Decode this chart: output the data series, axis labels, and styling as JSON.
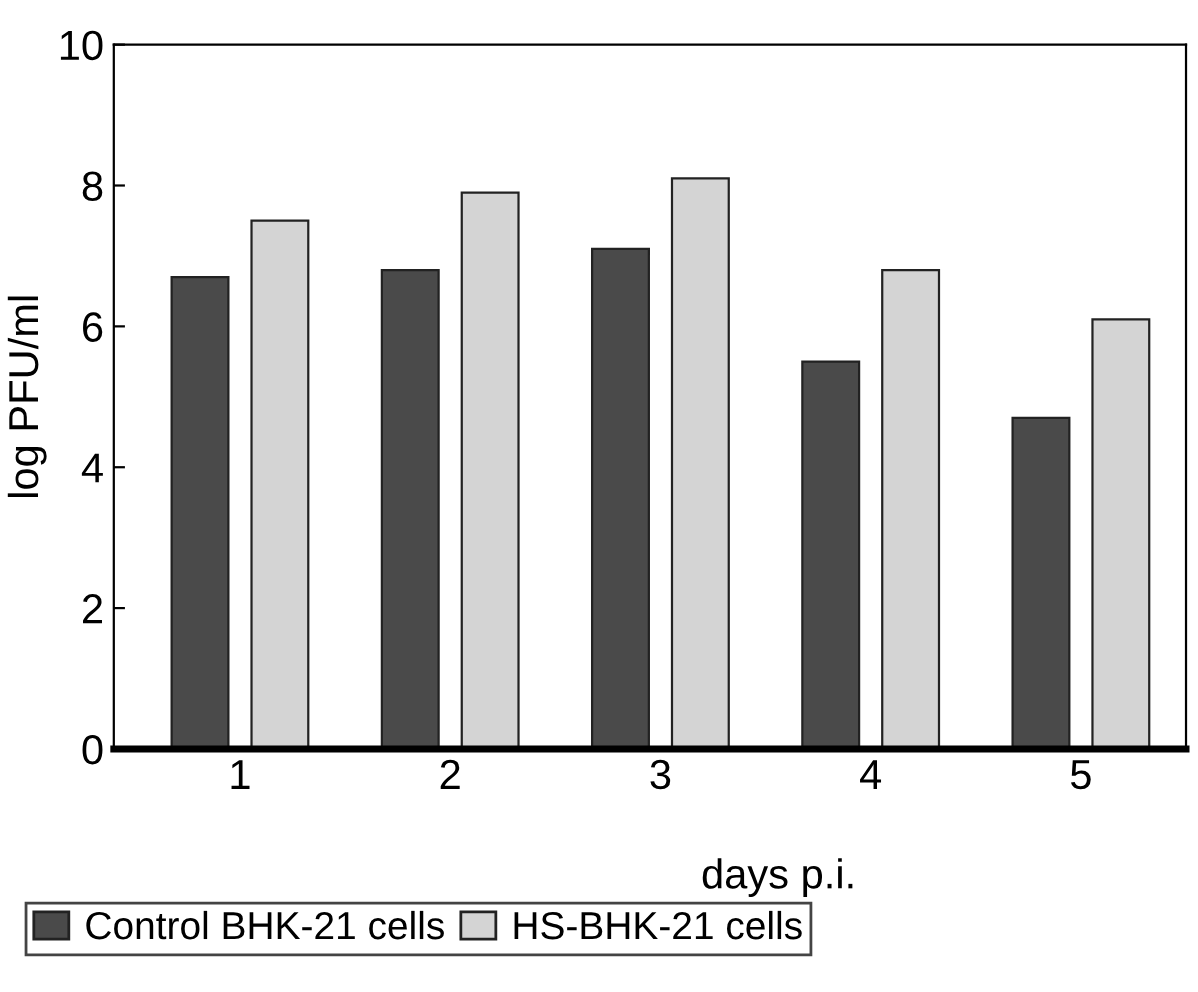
{
  "chart_data": {
    "type": "bar",
    "xlabel": "days p.i.",
    "ylabel": "log PFU/ml",
    "categories": [
      "1",
      "2",
      "3",
      "4",
      "5"
    ],
    "series": [
      {
        "name": "Control BHK-21 cells",
        "color": "#4a4a4a",
        "values": [
          6.7,
          6.8,
          7.1,
          5.5,
          4.7
        ]
      },
      {
        "name": "HS-BHK-21 cells",
        "color": "#d4d4d4",
        "values": [
          7.5,
          7.9,
          8.1,
          6.8,
          6.1
        ]
      }
    ],
    "ylim": [
      0,
      10
    ],
    "yticks": [
      0,
      2,
      4,
      6,
      8,
      10
    ],
    "grid": false,
    "legend": "bottom"
  }
}
